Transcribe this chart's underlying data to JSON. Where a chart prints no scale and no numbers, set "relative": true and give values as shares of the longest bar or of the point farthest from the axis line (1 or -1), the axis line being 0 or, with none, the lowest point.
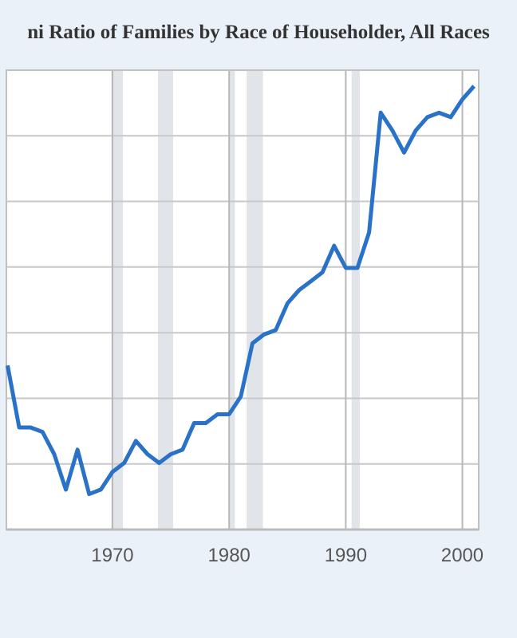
{
  "chart_data": {
    "type": "line",
    "title": "ni Ratio of Families by Race of Householder, All Races",
    "relative": true,
    "x": [
      1961,
      1962,
      1963,
      1964,
      1965,
      1966,
      1967,
      1968,
      1969,
      1970,
      1971,
      1972,
      1973,
      1974,
      1975,
      1976,
      1977,
      1978,
      1979,
      1980,
      1981,
      1982,
      1983,
      1984,
      1985,
      1986,
      1987,
      1988,
      1989,
      1990,
      1991,
      1992,
      1993,
      1994,
      1995,
      1996,
      1997,
      1998,
      1999,
      2000,
      2001
    ],
    "series": [
      {
        "color": "#2a72c8",
        "values": [
          0.37,
          0.23,
          0.23,
          0.22,
          0.17,
          0.09,
          0.18,
          0.08,
          0.09,
          0.13,
          0.15,
          0.2,
          0.17,
          0.15,
          0.17,
          0.18,
          0.24,
          0.24,
          0.26,
          0.26,
          0.3,
          0.42,
          0.44,
          0.45,
          0.51,
          0.54,
          0.56,
          0.58,
          0.64,
          0.59,
          0.59,
          0.67,
          0.94,
          0.9,
          0.85,
          0.9,
          0.93,
          0.94,
          0.93,
          0.97,
          1
        ]
      }
    ],
    "xlim": [
      1960.9,
      2001.4
    ],
    "xticks": [
      1970,
      1980,
      1990,
      2000
    ],
    "bands": [
      {
        "axis": "x",
        "from": 1969.9,
        "to": 1970.9,
        "color": "#e1e5ea"
      },
      {
        "axis": "x",
        "from": 1973.9,
        "to": 1975.2,
        "color": "#e1e5ea"
      },
      {
        "axis": "x",
        "from": 1980.0,
        "to": 1980.5,
        "color": "#e1e5ea"
      },
      {
        "axis": "x",
        "from": 1981.5,
        "to": 1982.9,
        "color": "#e1e5ea"
      },
      {
        "axis": "x",
        "from": 1990.5,
        "to": 1991.2,
        "color": "#e1e5ea"
      }
    ],
    "grid": true,
    "line_style": "solid",
    "marker": "none"
  }
}
